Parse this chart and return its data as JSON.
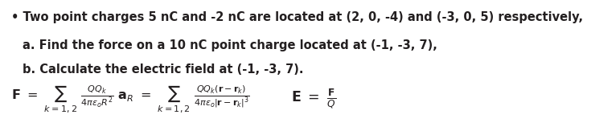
{
  "bullet_text": "• Two point charges 5 nC and -2 nC are located at (2, 0, -4) and (-3, 0, 5) respectively,",
  "line_a": "a. Find the force on a 10 nC point charge located at (-1, -3, 7),",
  "line_b": "b. Calculate the electric field at (-1, -3, 7).",
  "bg_color": "#ffffff",
  "text_color": "#231f20",
  "font_size_text": 10.5,
  "font_size_formula": 11.5
}
